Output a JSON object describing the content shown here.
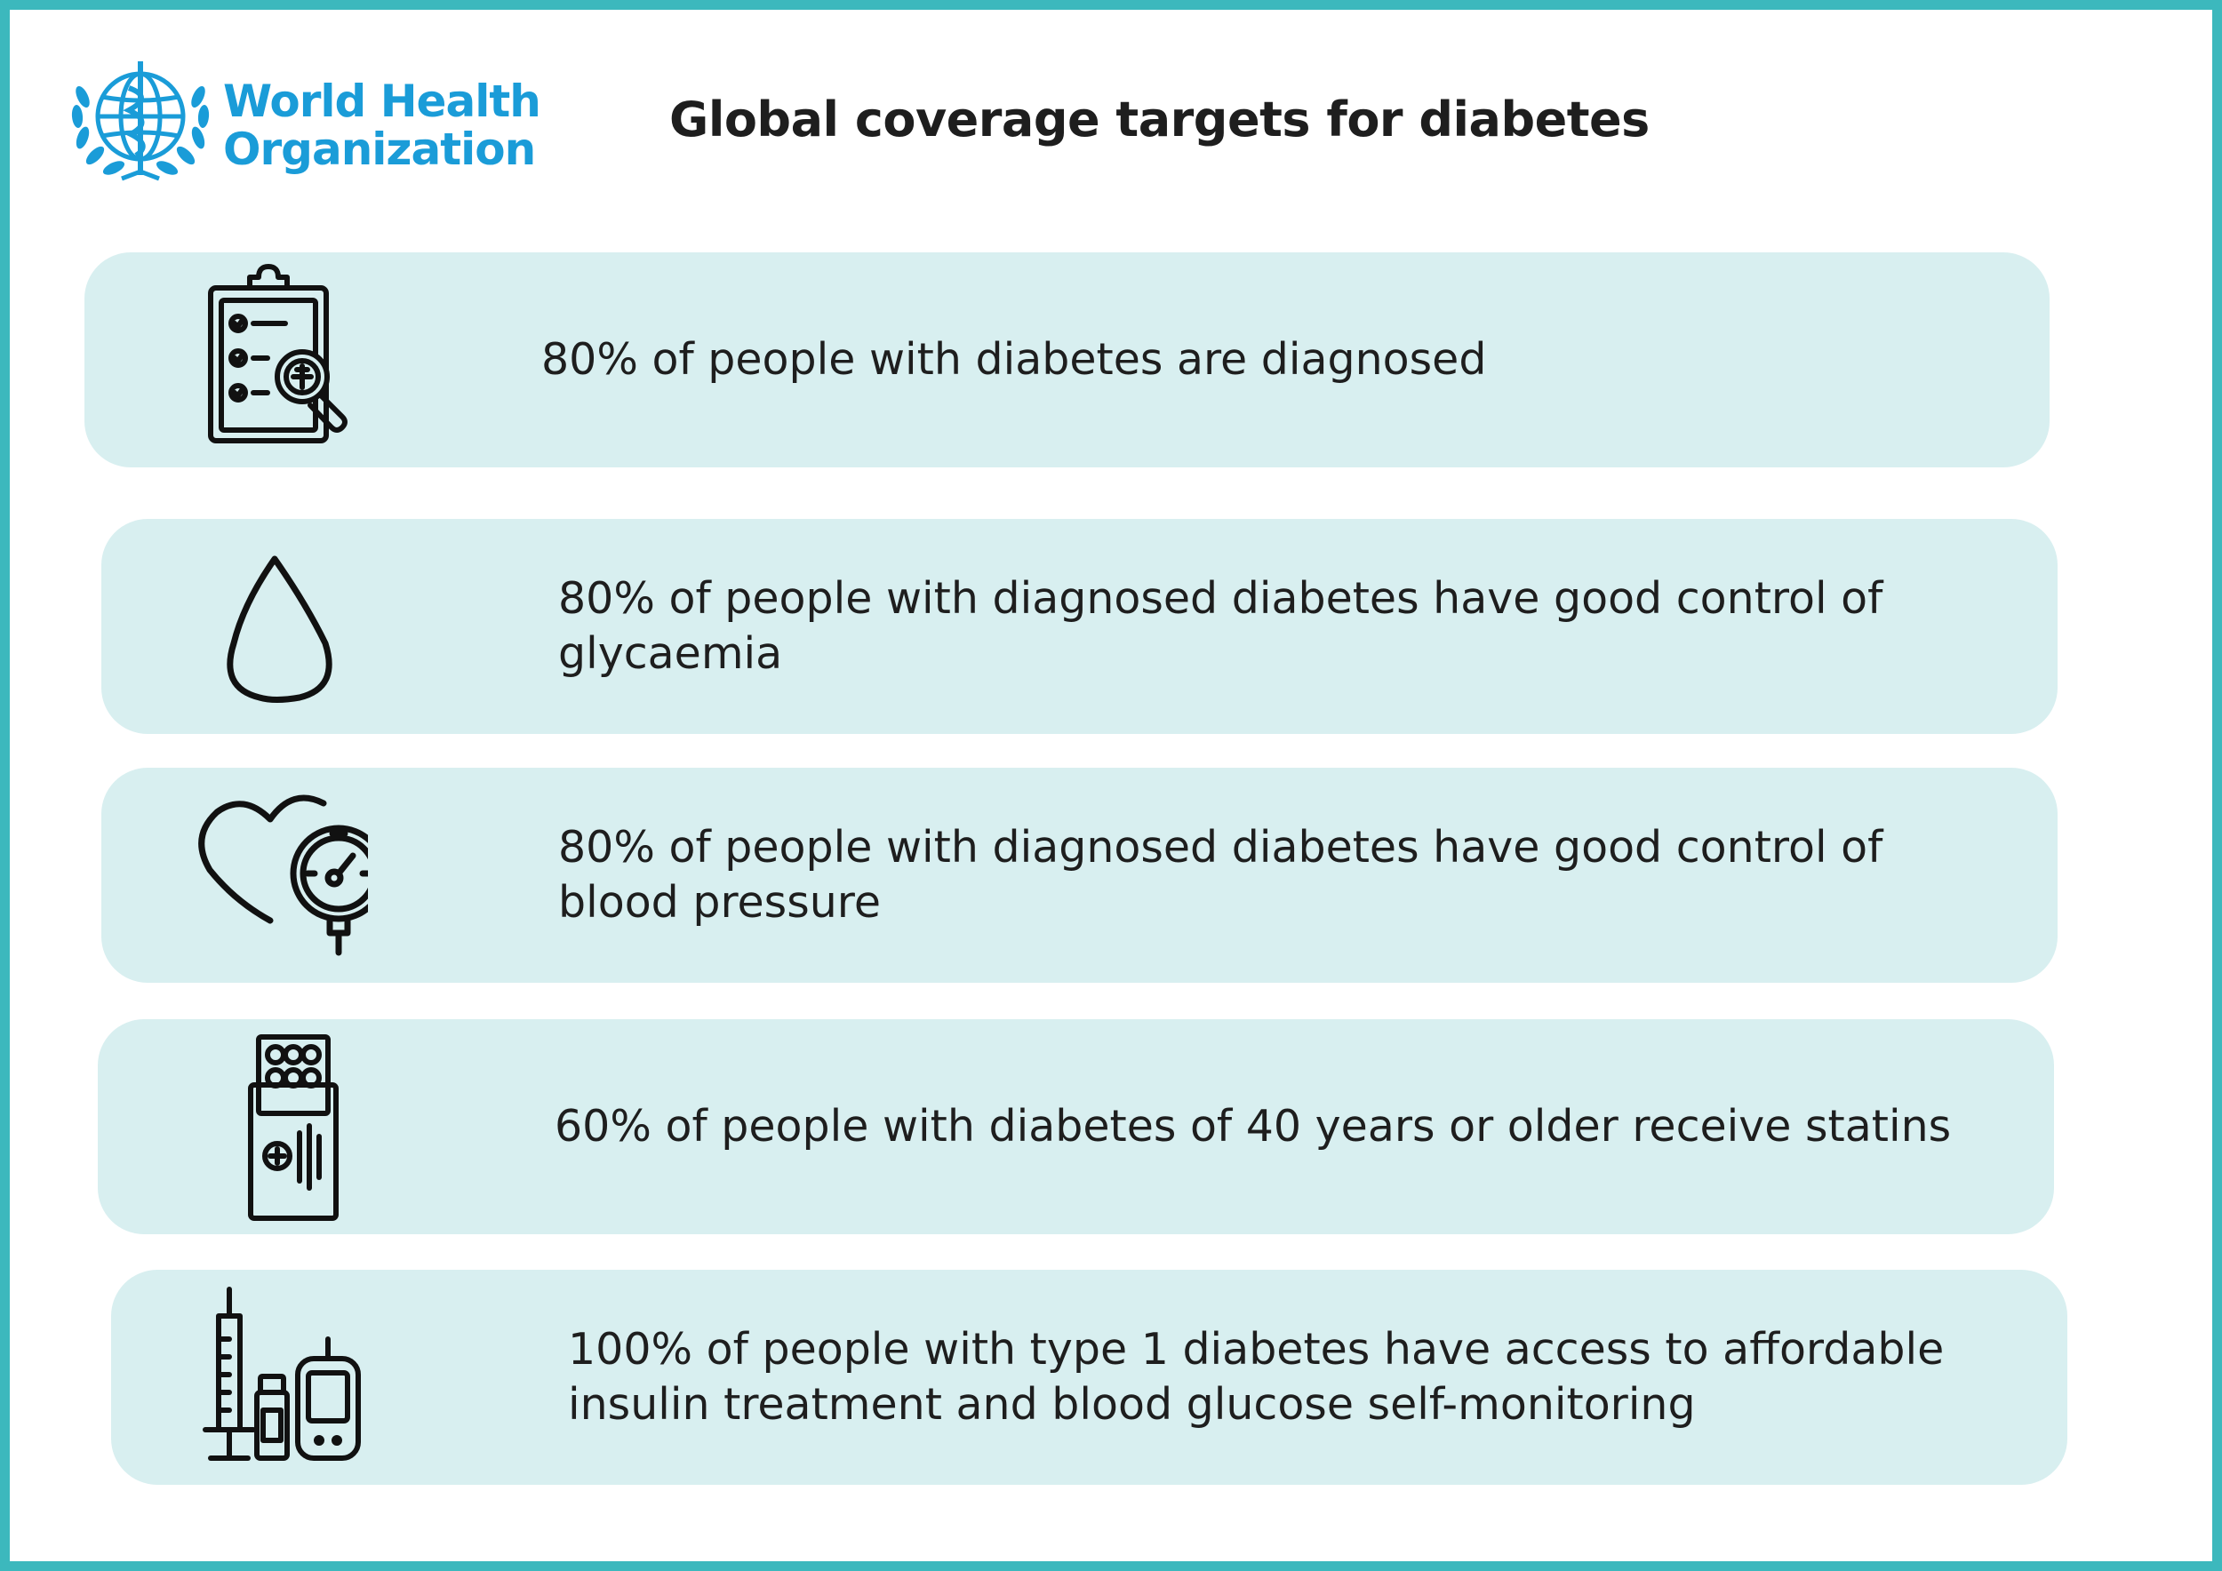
{
  "header": {
    "org_line1": "World Health",
    "org_line2": "Organization",
    "title": "Global coverage targets for diabetes"
  },
  "colors": {
    "frame": "#3cb8bd",
    "card_bg": "#d8eff0",
    "logo_blue": "#1a9cd8",
    "text": "#1e1e1e"
  },
  "targets": [
    {
      "icon": "clipboard-checklist-magnifier-icon",
      "text": "80% of people with diabetes are diagnosed"
    },
    {
      "icon": "blood-drop-icon",
      "text": "80% of people with diagnosed diabetes have good control of glycaemia"
    },
    {
      "icon": "heart-blood-pressure-gauge-icon",
      "text": "80% of people with diagnosed diabetes have good control of blood pressure"
    },
    {
      "icon": "medicine-pill-pack-icon",
      "text": "60% of people with diabetes of 40 years or older receive statins"
    },
    {
      "icon": "syringe-insulin-glucometer-icon",
      "text": "100% of people with type 1 diabetes have access to affordable insulin treatment and blood glucose self-monitoring"
    }
  ]
}
